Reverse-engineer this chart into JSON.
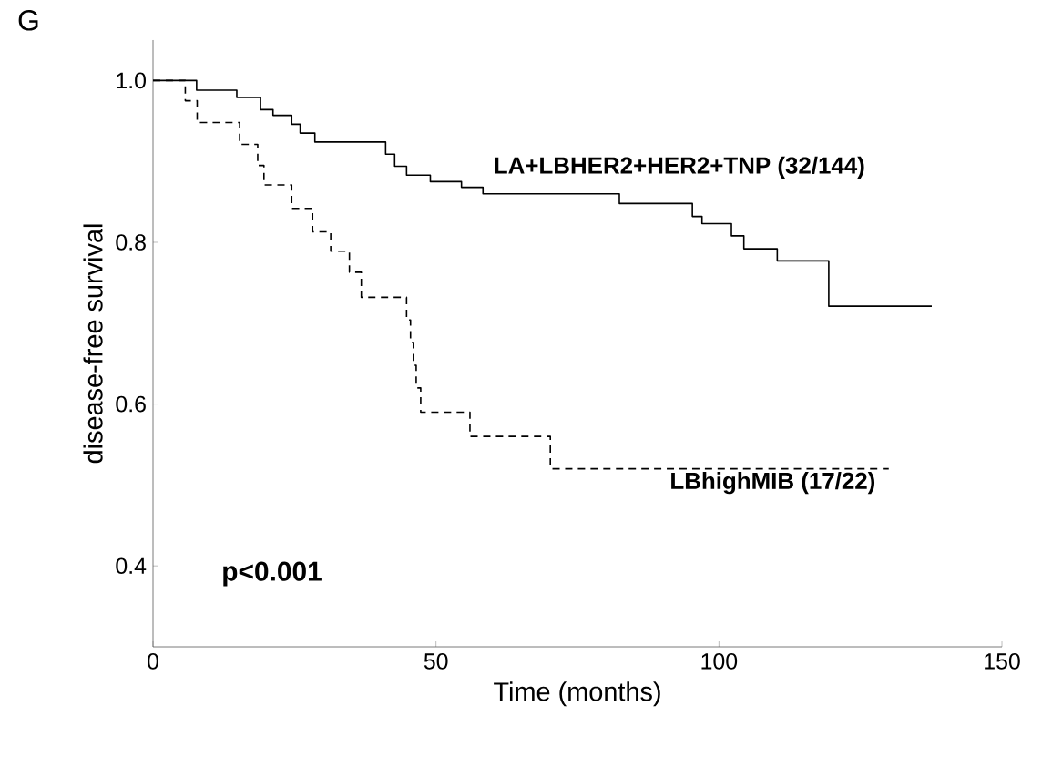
{
  "chart_data": {
    "type": "step",
    "annotations": [
      "G",
      "p<0.001"
    ],
    "xlabel": "Time (months)",
    "ylabel": "disease-free survival",
    "xlim": [
      0,
      150
    ],
    "ylim": [
      0.3,
      1.05
    ],
    "xticks": [
      0,
      50,
      100,
      150
    ],
    "yticks": [
      {
        "value": 0.4,
        "label": "0.4"
      },
      {
        "value": 0.6,
        "label": "0.6"
      },
      {
        "value": 0.8,
        "label": "0.8"
      },
      {
        "value": 1.0,
        "label": "1.0"
      }
    ],
    "grid": false,
    "series": [
      {
        "name": "LA+LBHER2+HER2+TNP (32/144)",
        "color": "#000000",
        "line_style": "solid",
        "x": [
          0,
          7.7,
          14.8,
          19,
          21.2,
          24.5,
          26,
          28.6,
          41.1,
          42.7,
          44.8,
          49,
          54.5,
          58.3,
          82.4,
          95.3,
          97,
          102.2,
          104.4,
          110.3,
          119.4,
          137.6
        ],
        "values": [
          1.0,
          0.988,
          0.979,
          0.964,
          0.957,
          0.946,
          0.935,
          0.924,
          0.909,
          0.894,
          0.883,
          0.875,
          0.868,
          0.86,
          0.848,
          0.832,
          0.823,
          0.808,
          0.792,
          0.777,
          0.721,
          0.721
        ]
      },
      {
        "name": "LBhighMIB (17/22)",
        "color": "#000000",
        "line_style": "dashed",
        "x": [
          0,
          5.7,
          7.8,
          15.3,
          18.5,
          19.6,
          24.5,
          28.2,
          31.4,
          34.7,
          36.8,
          44.8,
          45.5,
          46,
          46.5,
          47.3,
          56,
          70.2,
          130
        ],
        "values": [
          1.0,
          0.975,
          0.948,
          0.921,
          0.895,
          0.871,
          0.842,
          0.813,
          0.789,
          0.763,
          0.732,
          0.704,
          0.676,
          0.648,
          0.62,
          0.59,
          0.56,
          0.52,
          0.52
        ]
      }
    ]
  }
}
